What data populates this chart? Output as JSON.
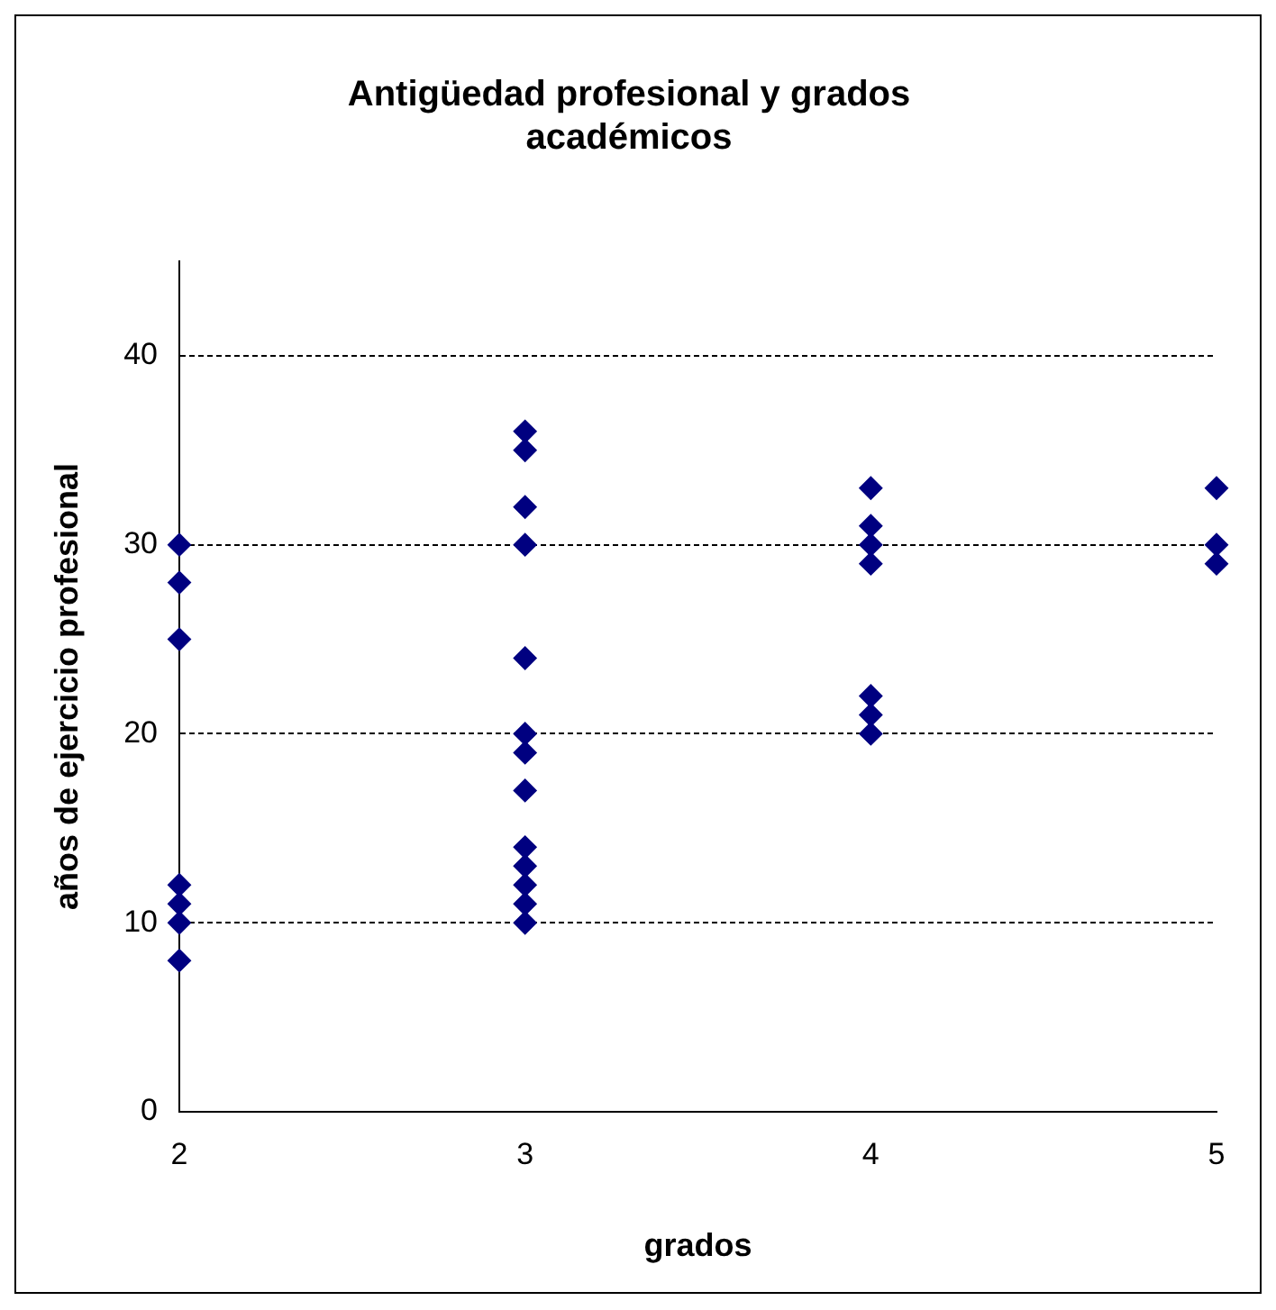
{
  "chart_data": {
    "type": "scatter",
    "title": "Antigüedad profesional y grados académicos",
    "xlabel": "grados",
    "ylabel": "años de ejercicio profesional",
    "series": [
      {
        "color": "#000080",
        "x": [
          2,
          2,
          2,
          2,
          2,
          2,
          2,
          3,
          3,
          3,
          3,
          3,
          3,
          3,
          3,
          3,
          3,
          3,
          3,
          3,
          4,
          4,
          4,
          4,
          4,
          4,
          4,
          5,
          5,
          5
        ],
        "values": [
          30,
          28,
          25,
          12,
          11,
          10,
          8,
          36,
          35,
          32,
          30,
          24,
          20,
          19,
          17,
          14,
          13,
          12,
          11,
          10,
          33,
          31,
          30,
          29,
          22,
          21,
          20,
          33,
          30,
          29
        ]
      }
    ],
    "xlim": [
      2,
      5
    ],
    "xticks": [
      2,
      3,
      4,
      5
    ],
    "ylim": [
      0,
      45
    ],
    "yticks": [
      0,
      10,
      20,
      30,
      40
    ],
    "grid": "y",
    "marker": "diamond",
    "legend": false
  }
}
